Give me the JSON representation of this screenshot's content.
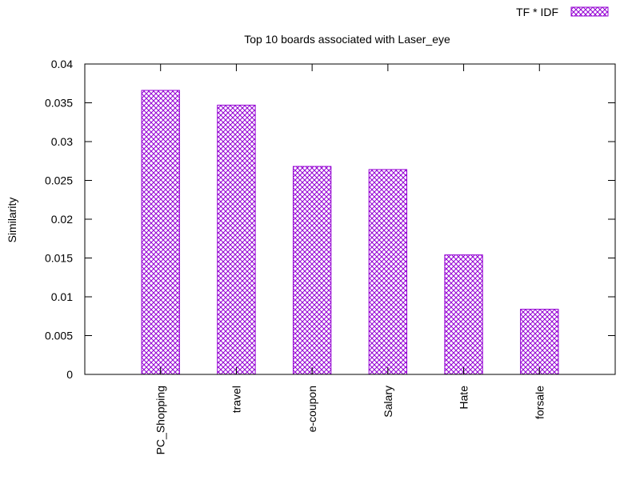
{
  "chart_data": {
    "type": "bar",
    "title": "Top 10 boards associated with Laser_eye",
    "xlabel": "",
    "ylabel": "Similarity",
    "categories": [
      "PC_Shopping",
      "travel",
      "e-coupon",
      "Salary",
      "Hate",
      "forsale"
    ],
    "series": [
      {
        "name": "TF * IDF",
        "values": [
          0.0366,
          0.0347,
          0.0268,
          0.0264,
          0.0154,
          0.0084
        ]
      }
    ],
    "ylim": [
      0,
      0.04
    ],
    "yticks": [
      "0",
      "0.005",
      "0.01",
      "0.015",
      "0.02",
      "0.025",
      "0.03",
      "0.035",
      "0.04"
    ],
    "grid": false,
    "legend_position": "top-right",
    "colors": {
      "series": "#9400d3",
      "frame": "#000000"
    }
  }
}
